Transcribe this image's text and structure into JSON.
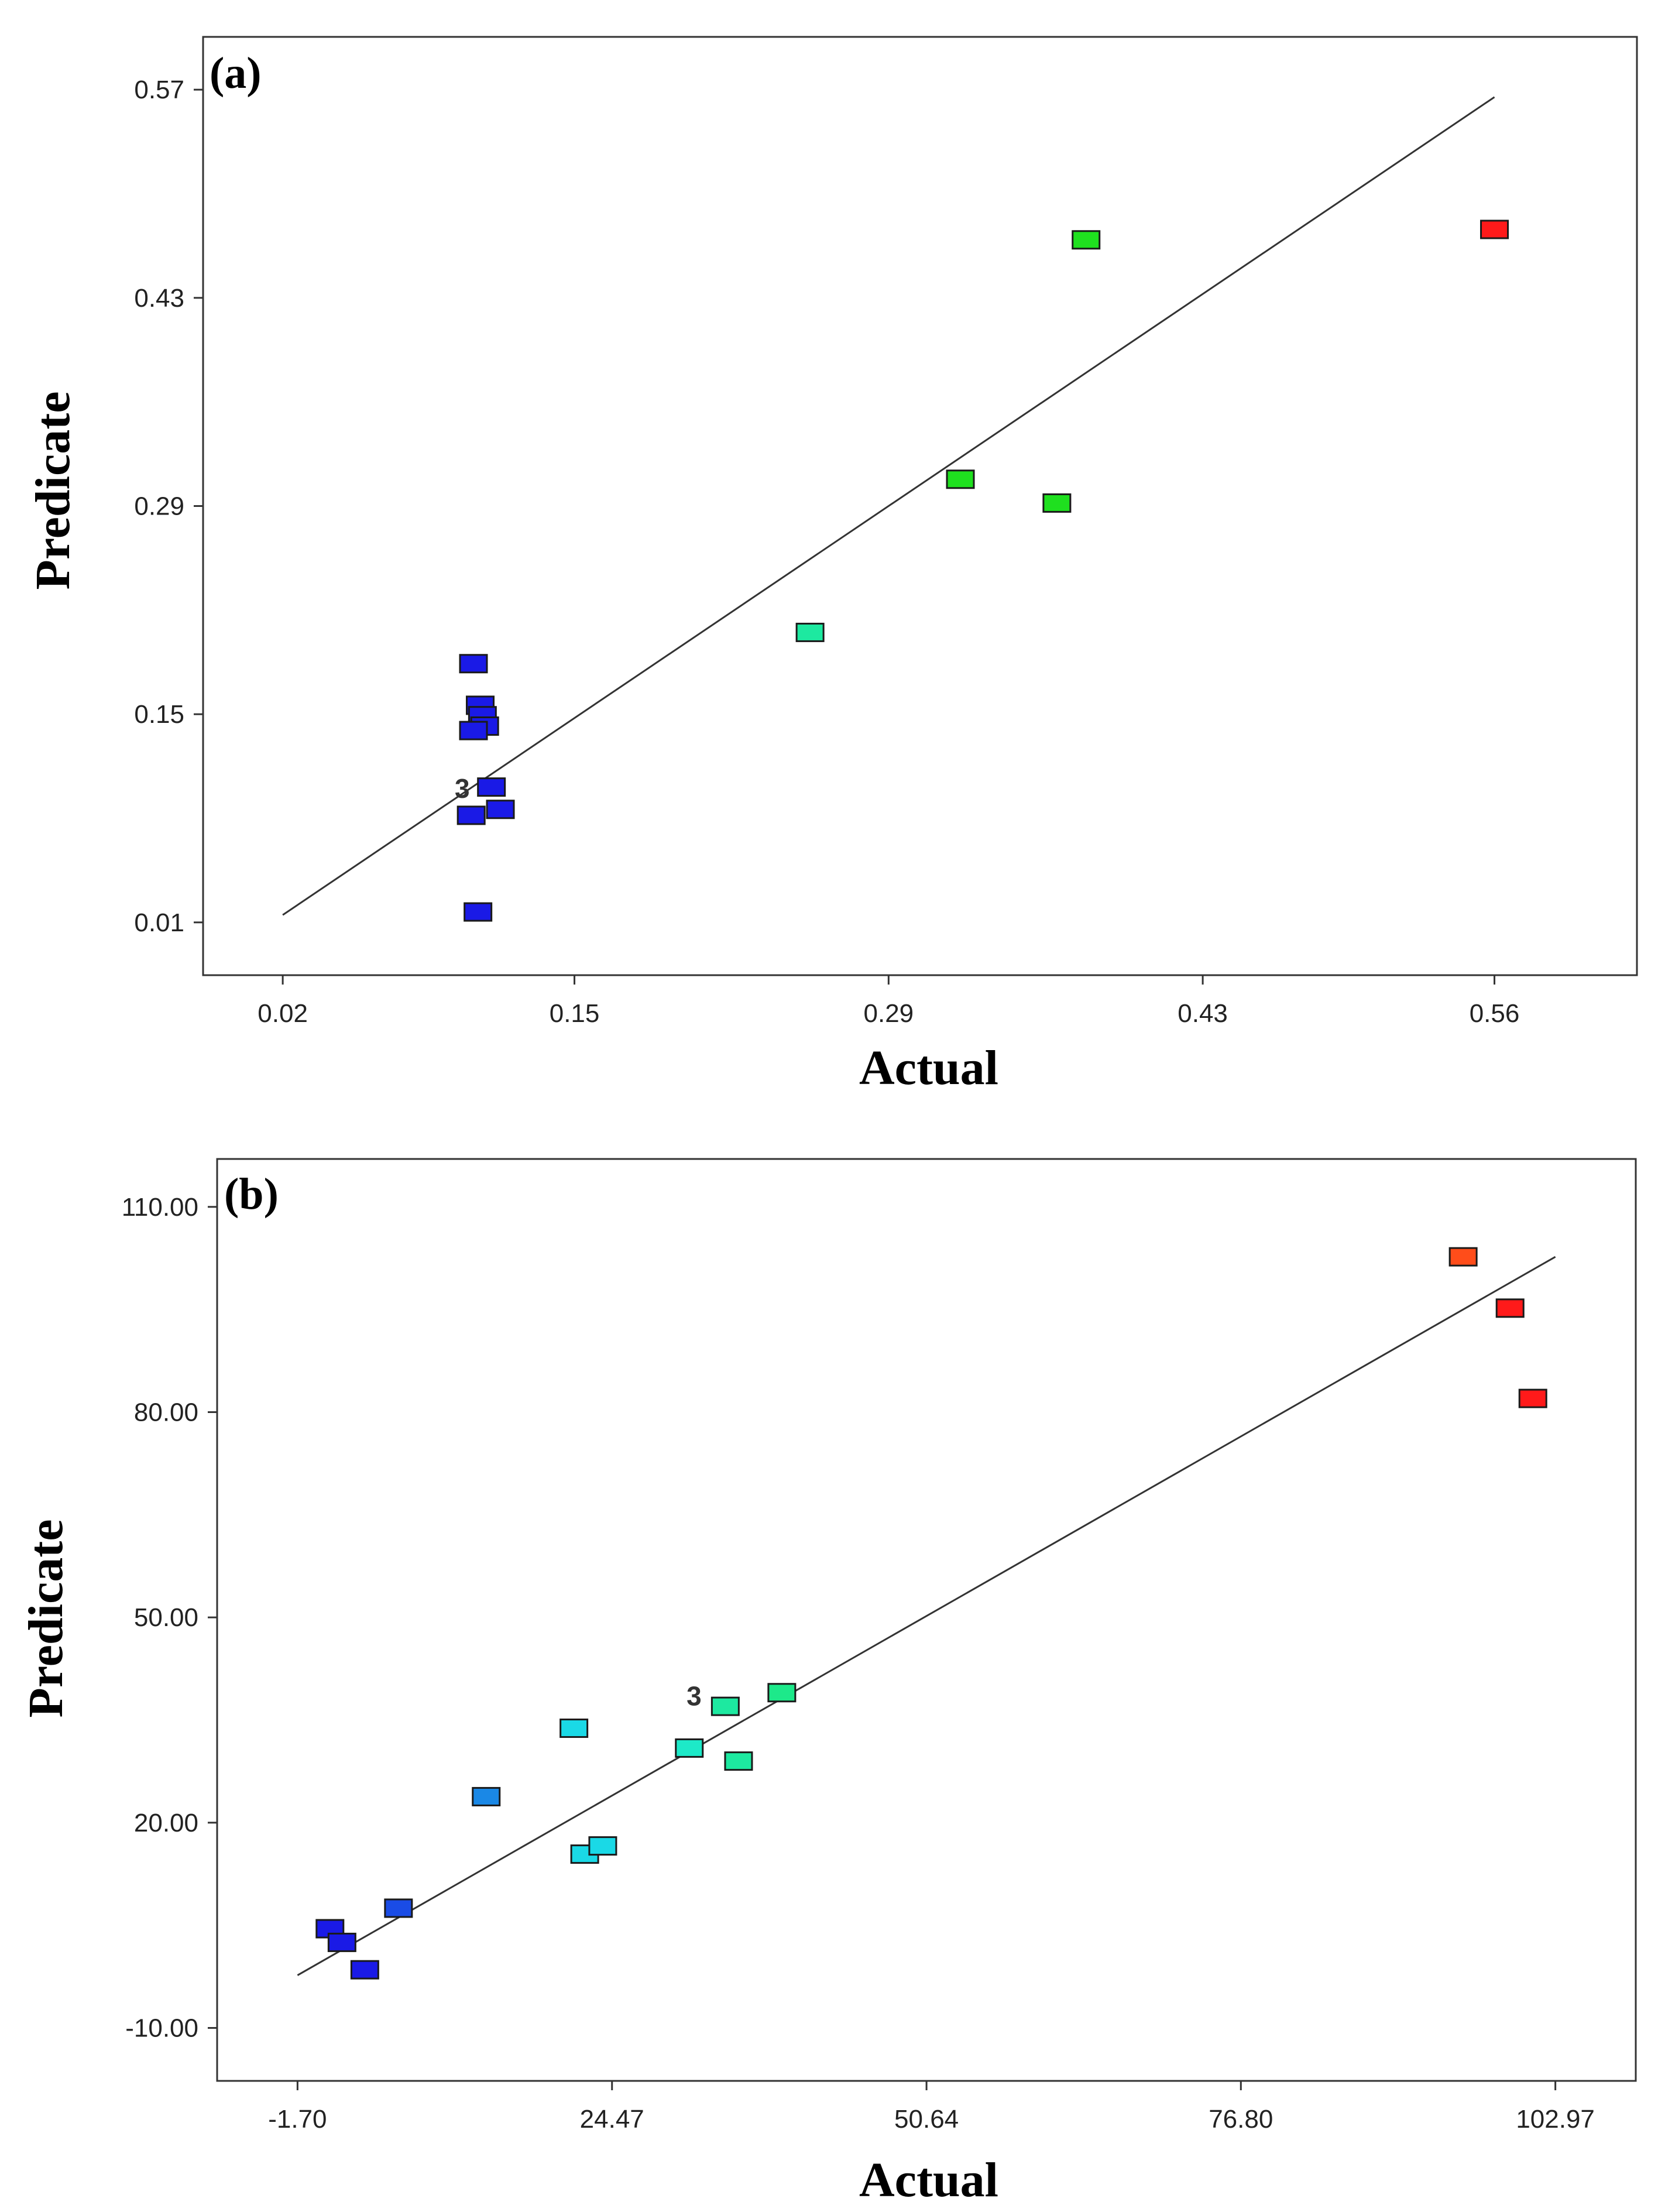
{
  "chart_data": [
    {
      "panel": "(a)",
      "type": "scatter",
      "title": "",
      "xlabel": "Actual",
      "ylabel": "Predicate",
      "xlim": [
        -0.0155,
        0.6235
      ],
      "ylim": [
        -0.0255,
        0.6055
      ],
      "xticks": [
        0.02,
        0.15,
        0.29,
        0.43,
        0.56
      ],
      "xtick_labels": [
        "0.02",
        "0.15",
        "0.29",
        "0.43",
        "0.56"
      ],
      "yticks": [
        0.01,
        0.15,
        0.29,
        0.43,
        0.57
      ],
      "ytick_labels": [
        "0.01",
        "0.15",
        "0.29",
        "0.43",
        "0.57"
      ],
      "fit_line": [
        [
          0.02,
          0.015
        ],
        [
          0.56,
          0.565
        ]
      ],
      "annotations": [
        {
          "text": "3",
          "x": 0.1,
          "y": 0.1
        }
      ],
      "points": [
        {
          "x": 0.105,
          "y": 0.184,
          "color": "#1a1ae6"
        },
        {
          "x": 0.108,
          "y": 0.156,
          "color": "#1a1ae6"
        },
        {
          "x": 0.109,
          "y": 0.149,
          "color": "#1a1ae6"
        },
        {
          "x": 0.11,
          "y": 0.142,
          "color": "#1a1ae6"
        },
        {
          "x": 0.105,
          "y": 0.139,
          "color": "#1a1ae6"
        },
        {
          "x": 0.113,
          "y": 0.101,
          "color": "#1a1ae6"
        },
        {
          "x": 0.117,
          "y": 0.086,
          "color": "#1a1ae6"
        },
        {
          "x": 0.104,
          "y": 0.082,
          "color": "#1a1ae6"
        },
        {
          "x": 0.107,
          "y": 0.017,
          "color": "#1a1ae6"
        },
        {
          "x": 0.255,
          "y": 0.205,
          "color": "#1de9a0"
        },
        {
          "x": 0.322,
          "y": 0.308,
          "color": "#1fe01f"
        },
        {
          "x": 0.365,
          "y": 0.292,
          "color": "#1fe01f"
        },
        {
          "x": 0.378,
          "y": 0.469,
          "color": "#1fe01f"
        },
        {
          "x": 0.56,
          "y": 0.476,
          "color": "#ff1a1a"
        }
      ]
    },
    {
      "panel": "(b)",
      "type": "scatter",
      "title": "",
      "xlabel": "Actual",
      "ylabel": "Predicate",
      "xlim": [
        -8.39,
        109.66
      ],
      "ylim": [
        -17.74,
        117.0
      ],
      "xticks": [
        -1.7,
        24.47,
        50.64,
        76.8,
        102.97
      ],
      "xtick_labels": [
        "-1.70",
        "24.47",
        "50.64",
        "76.80",
        "102.97"
      ],
      "yticks": [
        -10.0,
        20.0,
        50.0,
        80.0,
        110.0
      ],
      "ytick_labels": [
        "-10.00",
        "20.00",
        "50.00",
        "80.00",
        "110.00"
      ],
      "fit_line": [
        [
          -1.7,
          -2.3
        ],
        [
          102.97,
          102.7
        ]
      ],
      "annotations": [
        {
          "text": "3",
          "x": 31.3,
          "y": 38.5
        }
      ],
      "points": [
        {
          "x": 1.0,
          "y": 4.5,
          "color": "#1a1ae6"
        },
        {
          "x": 2.0,
          "y": 2.5,
          "color": "#1a1ae6"
        },
        {
          "x": 3.9,
          "y": -1.5,
          "color": "#1a1ae6"
        },
        {
          "x": 6.7,
          "y": 7.5,
          "color": "#1a4ce6"
        },
        {
          "x": 14.0,
          "y": 23.8,
          "color": "#1a88e6"
        },
        {
          "x": 21.3,
          "y": 33.8,
          "color": "#1ad9e6"
        },
        {
          "x": 22.2,
          "y": 15.4,
          "color": "#1ad9e6"
        },
        {
          "x": 23.7,
          "y": 16.6,
          "color": "#1ad9e6"
        },
        {
          "x": 30.9,
          "y": 30.9,
          "color": "#1de9c8"
        },
        {
          "x": 33.9,
          "y": 37.0,
          "color": "#1de9a0"
        },
        {
          "x": 35.0,
          "y": 29.0,
          "color": "#1de9a0"
        },
        {
          "x": 38.6,
          "y": 39.0,
          "color": "#1de98a"
        },
        {
          "x": 95.3,
          "y": 102.7,
          "color": "#ff4d1a"
        },
        {
          "x": 99.2,
          "y": 95.2,
          "color": "#ff1a1a"
        },
        {
          "x": 101.1,
          "y": 82.0,
          "color": "#ff1a1a"
        }
      ]
    }
  ]
}
